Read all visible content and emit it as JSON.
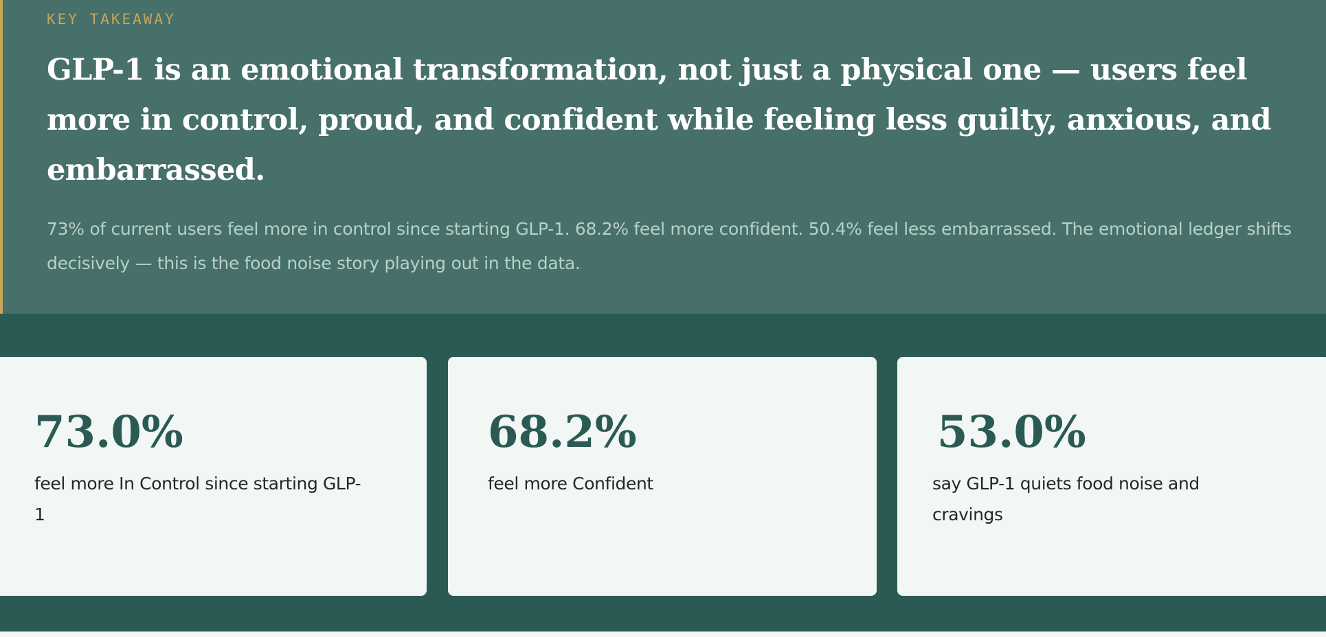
{
  "takeaway": {
    "eyebrow": "KEY TAKEAWAY",
    "headline": "GLP-1 is an emotional transformation, not just a physical one — users feel more in control, proud, and confident while feeling less guilty, anxious, and embarrassed.",
    "body": "73% of current users feel more in control since starting GLP-1. 68.2% feel more confident. 50.4% feel less embarrassed. The emotional ledger shifts decisively — this is the food noise story playing out in the data.",
    "accent_color": "#c9a65a",
    "background_color": "#467069"
  },
  "stats": {
    "background_color": "#2b5a54",
    "cards": [
      {
        "value": "73.0%",
        "label": "feel more In Control since starting GLP-1"
      },
      {
        "value": "68.2%",
        "label": "feel more Confident"
      },
      {
        "value": "53.0%",
        "label": "say GLP-1 quiets food noise and cravings"
      }
    ]
  }
}
